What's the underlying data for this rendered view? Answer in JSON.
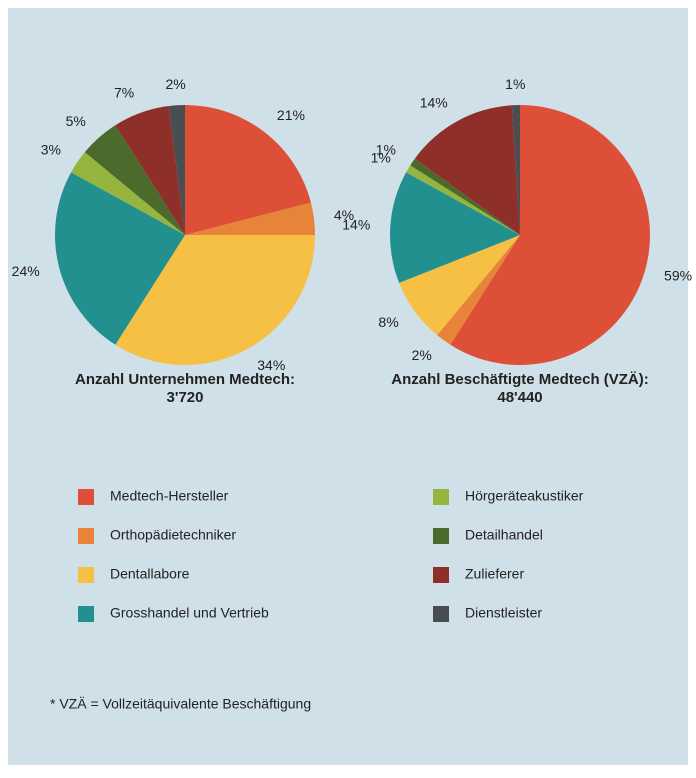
{
  "chart_data": [
    {
      "type": "pie",
      "title": "Anzahl Unternehmen Medtech:",
      "subtitle": "3'720",
      "categories": [
        "Medtech-Hersteller",
        "Orthopädietechniker",
        "Dentallabore",
        "Grosshandel und Vertrieb",
        "Hörgeräteakustiker",
        "Detailhandel",
        "Zulieferer",
        "Dienstleister"
      ],
      "values": [
        21,
        4,
        34,
        24,
        3,
        5,
        7,
        2
      ],
      "value_labels": [
        "21%",
        "4%",
        "34%",
        "24%",
        "3%",
        "5%",
        "7%",
        "2%"
      ],
      "colors": [
        "#de4f37",
        "#e8843a",
        "#f5c043",
        "#21908f",
        "#95b53f",
        "#4b6a2c",
        "#8e2f2a",
        "#4a4d52"
      ]
    },
    {
      "type": "pie",
      "title": "Anzahl Beschäftigte Medtech (VZÄ):",
      "subtitle": "48'440",
      "categories": [
        "Medtech-Hersteller",
        "Orthopädietechniker",
        "Dentallabore",
        "Grosshandel und Vertrieb",
        "Hörgeräteakustiker",
        "Detailhandel",
        "Zulieferer",
        "Dienstleister"
      ],
      "values": [
        59,
        2,
        8,
        14,
        1,
        1,
        14,
        1
      ],
      "value_labels": [
        "59%",
        "2%",
        "8%",
        "14%",
        "1%",
        "1%",
        "14%",
        "1%"
      ],
      "colors": [
        "#de4f37",
        "#e8843a",
        "#f5c043",
        "#21908f",
        "#95b53f",
        "#4b6a2c",
        "#8e2f2a",
        "#4a4d52"
      ]
    }
  ],
  "footnote": "* VZÄ = Vollzeitäquivalente Beschäftigung"
}
